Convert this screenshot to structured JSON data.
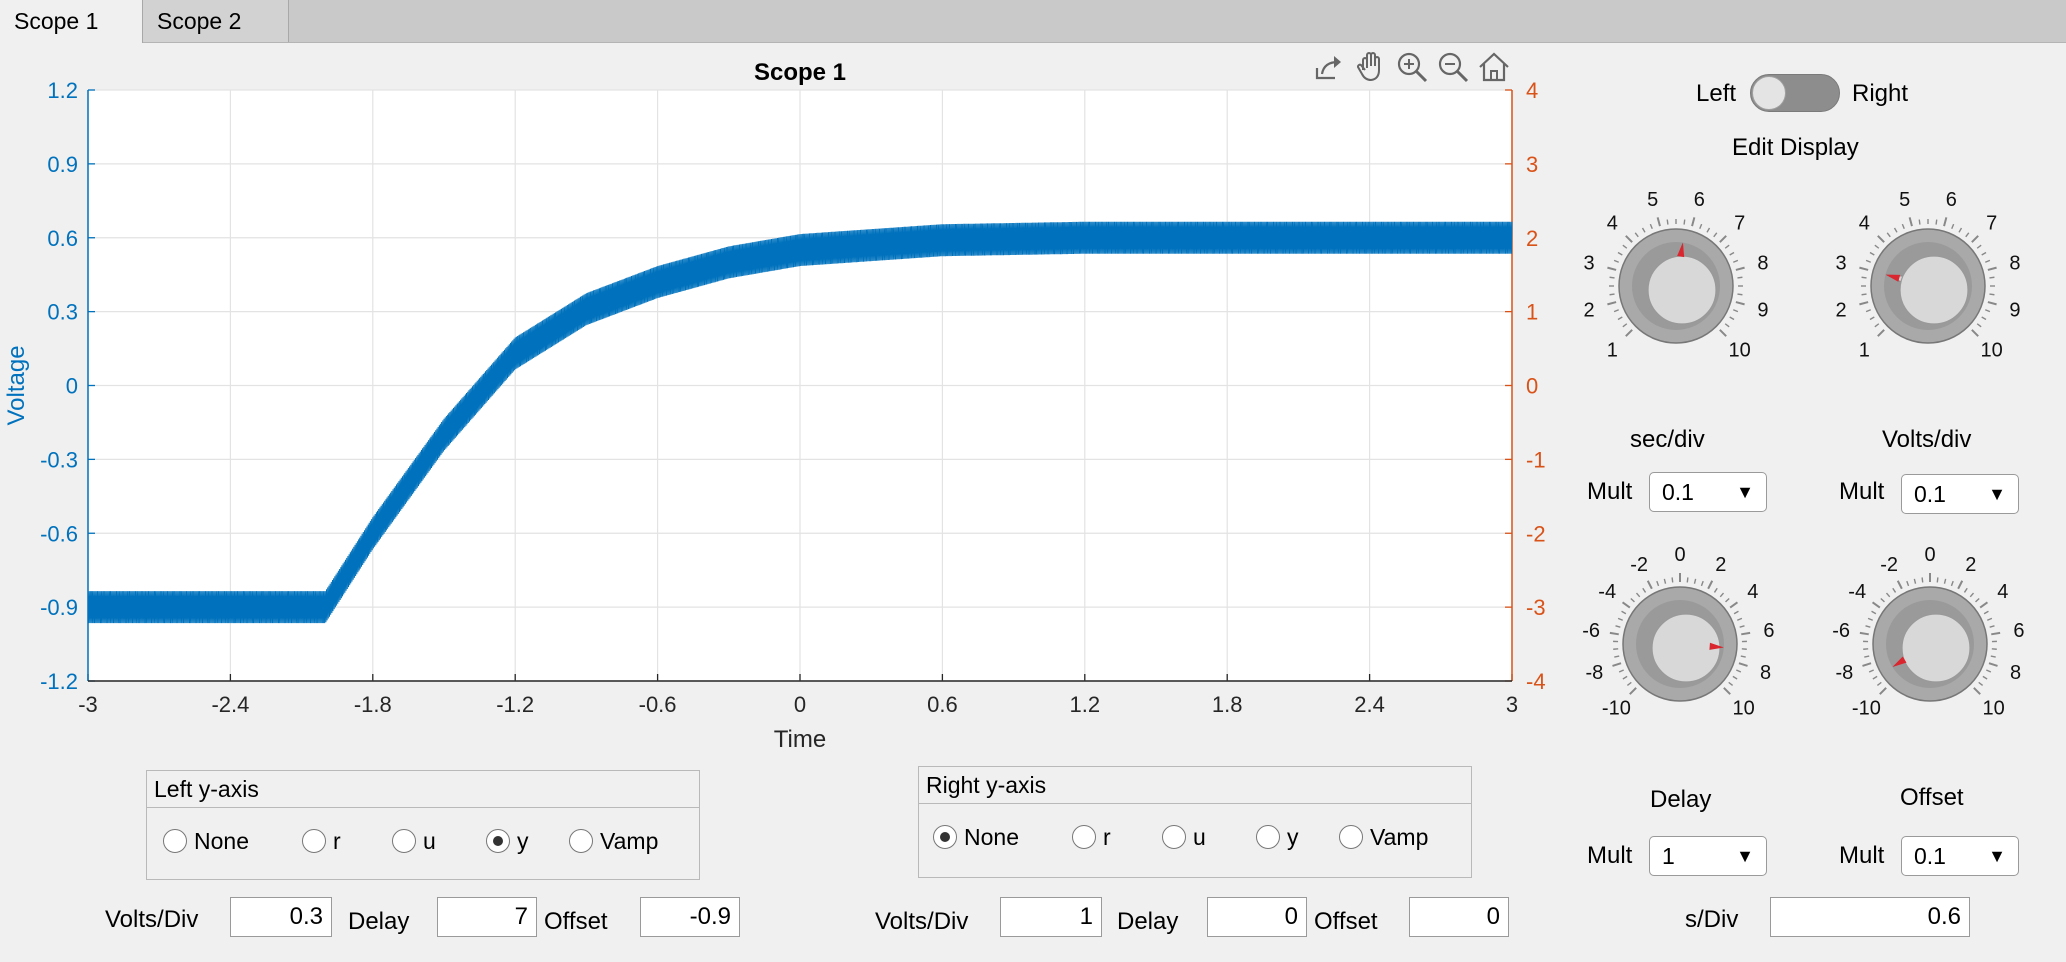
{
  "tabs": [
    {
      "label": "Scope 1",
      "active": true
    },
    {
      "label": "Scope 2",
      "active": false
    }
  ],
  "toolbar": {
    "icons": [
      "export-icon",
      "pan-hand-icon",
      "zoom-in-icon",
      "zoom-out-icon",
      "home-icon"
    ]
  },
  "chart_data": {
    "type": "line",
    "title": "Scope 1",
    "xlabel": "Time",
    "ylabel": "Voltage",
    "xlim": [
      -3,
      3
    ],
    "ylim": [
      -1.2,
      1.2
    ],
    "y2lim": [
      -4,
      4
    ],
    "xticks": [
      "-3",
      "-2.4",
      "-1.8",
      "-1.2",
      "-0.6",
      "0",
      "0.6",
      "1.2",
      "1.8",
      "2.4",
      "3"
    ],
    "yticks": [
      "1.2",
      "0.9",
      "0.6",
      "0.3",
      "0",
      "-0.3",
      "-0.6",
      "-0.9",
      "-1.2"
    ],
    "y2ticks": [
      "4",
      "3",
      "2",
      "1",
      "0",
      "-1",
      "-2",
      "-3",
      "-4"
    ],
    "grid": true,
    "colors": {
      "series": "#0072bd",
      "left_axis": "#0072bd",
      "right_axis": "#d95319"
    },
    "series": [
      {
        "x": [
          -3,
          -2,
          -1.8,
          -1.5,
          -1.2,
          -0.9,
          -0.6,
          -0.3,
          0,
          0.6,
          1.2,
          1.8,
          2.4,
          3
        ],
        "y": [
          -0.9,
          -0.9,
          -0.6,
          -0.2,
          0.13,
          0.31,
          0.42,
          0.5,
          0.55,
          0.59,
          0.6,
          0.6,
          0.6,
          0.6
        ],
        "ripple_amplitude": 0.065
      }
    ]
  },
  "toggle": {
    "left": "Left",
    "right": "Right",
    "state": "Left"
  },
  "edit_display": "Edit Display",
  "knobs": {
    "sec_div": {
      "label": "sec/div",
      "labels": [
        "1",
        "2",
        "3",
        "4",
        "5",
        "6",
        "7",
        "8",
        "9",
        "10"
      ],
      "value": 5.8
    },
    "volts_div": {
      "label": "Volts/div",
      "labels": [
        "1",
        "2",
        "3",
        "4",
        "5",
        "6",
        "7",
        "8",
        "9",
        "10"
      ],
      "value": 3
    },
    "delay": {
      "label": "Delay",
      "labels": [
        "-10",
        "-8",
        "-6",
        "-4",
        "-2",
        "0",
        "2",
        "4",
        "6",
        "8",
        "10"
      ],
      "value": 7
    },
    "offset": {
      "label": "Offset",
      "labels": [
        "-10",
        "-8",
        "-6",
        "-4",
        "-2",
        "0",
        "2",
        "4",
        "6",
        "8",
        "10"
      ],
      "value": -9
    }
  },
  "mult_label": "Mult",
  "dropdowns": {
    "sec_mult": "0.1",
    "volts_mult": "0.1",
    "delay_mult": "1",
    "offset_mult": "0.1"
  },
  "left_panel": {
    "title": "Left y-axis",
    "options": [
      "None",
      "r",
      "u",
      "y",
      "Vamp"
    ],
    "selected": "y"
  },
  "right_panel": {
    "title": "Right y-axis",
    "options": [
      "None",
      "r",
      "u",
      "y",
      "Vamp"
    ],
    "selected": "None"
  },
  "left_fields": {
    "volts_label": "Volts/Div",
    "volts": "0.3",
    "delay_label": "Delay",
    "delay": "7",
    "offset_label": "Offset",
    "offset": "-0.9"
  },
  "right_fields": {
    "volts_label": "Volts/Div",
    "volts": "1",
    "delay_label": "Delay",
    "delay": "0",
    "offset_label": "Offset",
    "offset": "0"
  },
  "sdiv": {
    "label": "s/Div",
    "value": "0.6"
  }
}
